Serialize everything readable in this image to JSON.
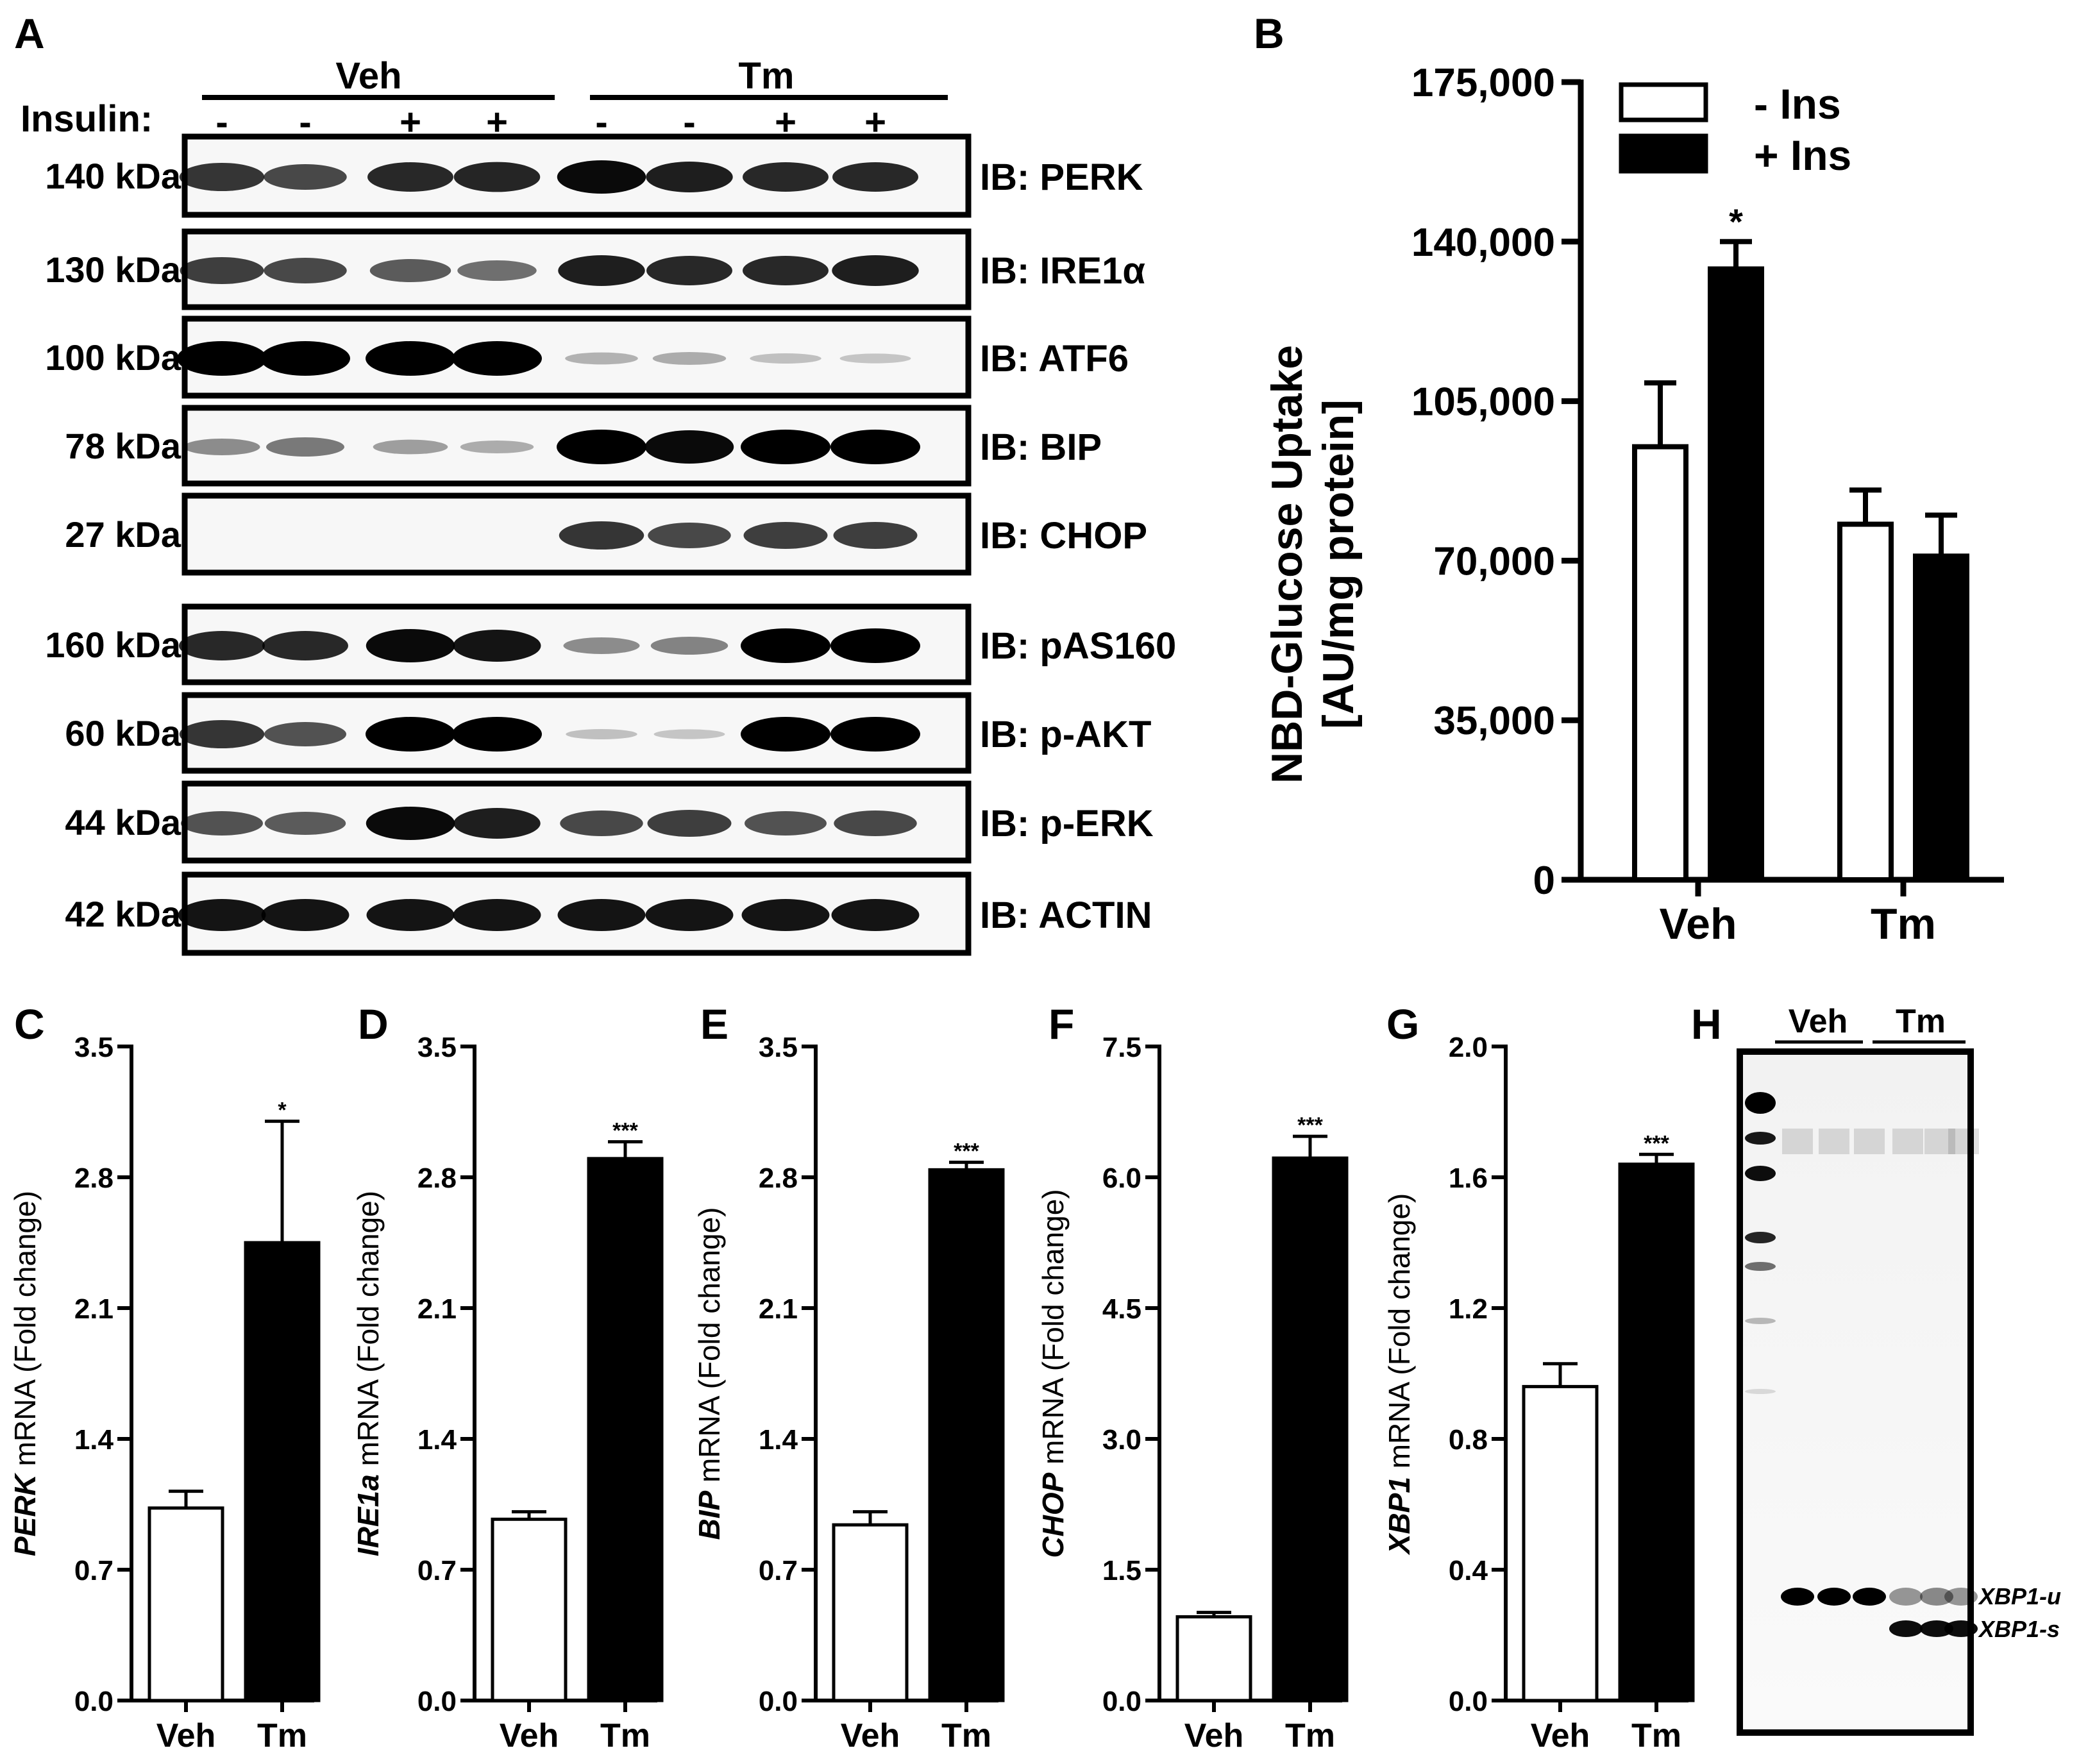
{
  "panel_letters": [
    "A",
    "B",
    "C",
    "D",
    "E",
    "F",
    "G",
    "H"
  ],
  "panel_a": {
    "groups": [
      {
        "label": "Veh"
      },
      {
        "label": "Tm"
      }
    ],
    "insulin_label": "Insulin:",
    "insulin_signs": [
      "-",
      "-",
      "+",
      "+",
      "-",
      "-",
      "+",
      "+"
    ],
    "blots": [
      {
        "size": "140 kDa",
        "label": "IB: PERK",
        "intensities": [
          0.75,
          0.65,
          0.8,
          0.82,
          0.95,
          0.85,
          0.8,
          0.8
        ]
      },
      {
        "size": "130 kDa",
        "label": "IB: IRE1α",
        "intensities": [
          0.7,
          0.65,
          0.55,
          0.45,
          0.85,
          0.8,
          0.8,
          0.85
        ]
      },
      {
        "size": "100 kDa",
        "label": "IB: ATF6",
        "intensities": [
          1.0,
          1.0,
          1.0,
          1.0,
          0.12,
          0.15,
          0.05,
          0.03
        ]
      },
      {
        "size": "78 kDa",
        "label": "IB: BIP",
        "intensities": [
          0.3,
          0.4,
          0.22,
          0.15,
          1.0,
          0.95,
          1.0,
          1.0
        ]
      },
      {
        "size": "27 kDa",
        "label": "IB: CHOP",
        "intensities": [
          0.0,
          0.0,
          0.0,
          0.0,
          0.75,
          0.65,
          0.7,
          0.7
        ]
      },
      {
        "size": "160 kDa",
        "label": "IB: pAS160",
        "intensities": [
          0.8,
          0.8,
          0.95,
          0.9,
          0.3,
          0.35,
          1.0,
          1.0
        ]
      },
      {
        "size": "60 kDa",
        "label": "IB: p-AKT",
        "intensities": [
          0.75,
          0.6,
          1.0,
          1.0,
          0.05,
          0.03,
          1.0,
          1.0
        ]
      },
      {
        "size": "44 kDa",
        "label": "IB: p-ERK",
        "intensities": [
          0.6,
          0.55,
          0.95,
          0.85,
          0.65,
          0.7,
          0.6,
          0.65
        ]
      },
      {
        "size": "42 kDa",
        "label": "IB: ACTIN",
        "intensities": [
          0.9,
          0.9,
          0.9,
          0.9,
          0.9,
          0.9,
          0.9,
          0.9
        ]
      }
    ]
  },
  "chart_data": [
    {
      "panel": "B",
      "type": "bar",
      "categories": [
        "Veh",
        "Tm"
      ],
      "series": [
        {
          "name": "- Ins",
          "values": [
            95000,
            78000
          ],
          "errors": [
            14000,
            7500
          ],
          "color": "#ffffff"
        },
        {
          "name": "+ Ins",
          "values": [
            134000,
            71000
          ],
          "errors": [
            6000,
            9000
          ],
          "color": "#000000"
        }
      ],
      "significance": [
        [
          "",
          ""
        ],
        [
          "*",
          ""
        ]
      ],
      "ylabel_line1": "NBD-Glucose Uptake",
      "ylabel_line2": "[AU/mg protein]",
      "ylim": [
        0,
        175000
      ],
      "yticks": [
        "0",
        "35,000",
        "70,000",
        "105,000",
        "140,000",
        "175,000"
      ],
      "legend_position": "top-left"
    },
    {
      "panel": "C",
      "type": "bar",
      "categories": [
        "Veh",
        "Tm"
      ],
      "values": [
        1.03,
        2.45
      ],
      "errors": [
        0.09,
        0.65
      ],
      "significance": [
        "",
        "*"
      ],
      "ylabel_gene": "PERK",
      "ylabel_rest": " mRNA (Fold change)",
      "ylim": [
        0,
        3.5
      ],
      "yticks": [
        "0.0",
        "0.7",
        "1.4",
        "2.1",
        "2.8",
        "3.5"
      ]
    },
    {
      "panel": "D",
      "type": "bar",
      "categories": [
        "Veh",
        "Tm"
      ],
      "values": [
        0.97,
        2.9
      ],
      "errors": [
        0.04,
        0.09
      ],
      "significance": [
        "",
        "***"
      ],
      "ylabel_gene": "IRE1a",
      "ylabel_rest": " mRNA (Fold change)",
      "ylim": [
        0,
        3.5
      ],
      "yticks": [
        "0.0",
        "0.7",
        "1.4",
        "2.1",
        "2.8",
        "3.5"
      ]
    },
    {
      "panel": "E",
      "type": "bar",
      "categories": [
        "Veh",
        "Tm"
      ],
      "values": [
        0.94,
        2.84
      ],
      "errors": [
        0.07,
        0.04
      ],
      "significance": [
        "",
        "***"
      ],
      "ylabel_gene": "BIP",
      "ylabel_rest": " mRNA (Fold change)",
      "ylim": [
        0,
        3.5
      ],
      "yticks": [
        "0.0",
        "0.7",
        "1.4",
        "2.1",
        "2.8",
        "3.5"
      ]
    },
    {
      "panel": "F",
      "type": "bar",
      "categories": [
        "Veh",
        "Tm"
      ],
      "values": [
        0.96,
        6.22
      ],
      "errors": [
        0.05,
        0.25
      ],
      "significance": [
        "",
        "***"
      ],
      "ylabel_gene": "CHOP",
      "ylabel_rest": " mRNA (Fold change)",
      "ylim": [
        0,
        7.5
      ],
      "yticks": [
        "0.0",
        "1.5",
        "3.0",
        "4.5",
        "6.0",
        "7.5"
      ]
    },
    {
      "panel": "G",
      "type": "bar",
      "categories": [
        "Veh",
        "Tm"
      ],
      "values": [
        0.96,
        1.64
      ],
      "errors": [
        0.07,
        0.03
      ],
      "significance": [
        "",
        "***"
      ],
      "ylabel_gene": "XBP1",
      "ylabel_rest": " mRNA (Fold change)",
      "ylim": [
        0,
        2.0
      ],
      "yticks": [
        "0.0",
        "0.4",
        "0.8",
        "1.2",
        "1.6",
        "2.0"
      ]
    }
  ],
  "panel_h": {
    "groups": [
      {
        "label": "Veh"
      },
      {
        "label": "Tm"
      }
    ],
    "band_labels": [
      "XBP1-u",
      "XBP1-s"
    ]
  }
}
